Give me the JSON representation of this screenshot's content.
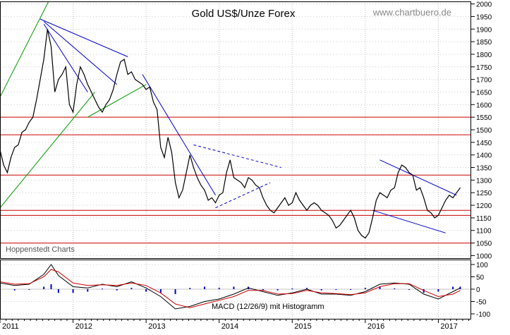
{
  "chart_data": {
    "type": "line",
    "title": "Gold US$/Unze Forex",
    "watermark": "www.chartbuero.de",
    "source_label": "Hoppenstedt Charts",
    "price_axis": {
      "ylim": [
        990,
        2010
      ],
      "ticks": [
        1000,
        1050,
        1100,
        1150,
        1200,
        1250,
        1300,
        1350,
        1400,
        1450,
        1500,
        1550,
        1600,
        1650,
        1700,
        1750,
        1800,
        1850,
        1900,
        1950,
        2000
      ]
    },
    "macd_axis": {
      "ylim": [
        -120,
        120
      ],
      "ticks": [
        -100,
        -50,
        0,
        50,
        100
      ],
      "label": "MACD (12/26/9) mit Histogramm"
    },
    "x_axis": {
      "xlim": [
        2011.0,
        2017.45
      ],
      "labels": [
        "2011",
        "2012",
        "2013",
        "2014",
        "2015",
        "2016",
        "2017"
      ]
    },
    "series": [
      {
        "name": "Gold",
        "x": [
          2011.0,
          2011.05,
          2011.1,
          2011.15,
          2011.2,
          2011.25,
          2011.3,
          2011.35,
          2011.4,
          2011.45,
          2011.5,
          2011.55,
          2011.6,
          2011.65,
          2011.7,
          2011.75,
          2011.8,
          2011.85,
          2011.9,
          2011.95,
          2012.0,
          2012.05,
          2012.1,
          2012.15,
          2012.2,
          2012.25,
          2012.3,
          2012.35,
          2012.4,
          2012.45,
          2012.5,
          2012.55,
          2012.6,
          2012.65,
          2012.7,
          2012.75,
          2012.8,
          2012.85,
          2012.9,
          2012.95,
          2013.0,
          2013.05,
          2013.1,
          2013.15,
          2013.2,
          2013.25,
          2013.3,
          2013.35,
          2013.4,
          2013.45,
          2013.5,
          2013.55,
          2013.6,
          2013.65,
          2013.7,
          2013.75,
          2013.8,
          2013.85,
          2013.9,
          2013.95,
          2014.0,
          2014.05,
          2014.1,
          2014.15,
          2014.2,
          2014.25,
          2014.3,
          2014.35,
          2014.4,
          2014.45,
          2014.5,
          2014.55,
          2014.6,
          2014.65,
          2014.7,
          2014.75,
          2014.8,
          2014.85,
          2014.9,
          2014.95,
          2015.0,
          2015.05,
          2015.1,
          2015.15,
          2015.2,
          2015.25,
          2015.3,
          2015.35,
          2015.4,
          2015.45,
          2015.5,
          2015.55,
          2015.6,
          2015.65,
          2015.7,
          2015.75,
          2015.8,
          2015.85,
          2015.9,
          2015.95,
          2016.0,
          2016.05,
          2016.1,
          2016.15,
          2016.2,
          2016.25,
          2016.3,
          2016.35,
          2016.4,
          2016.45,
          2016.5,
          2016.55,
          2016.6,
          2016.65,
          2016.7,
          2016.75,
          2016.8,
          2016.85,
          2016.9,
          2016.95,
          2017.0,
          2017.05,
          2017.1,
          2017.15,
          2017.2,
          2017.25,
          2017.3
        ],
        "values": [
          1420,
          1360,
          1330,
          1390,
          1430,
          1440,
          1490,
          1500,
          1530,
          1550,
          1620,
          1700,
          1780,
          1900,
          1830,
          1650,
          1700,
          1720,
          1750,
          1600,
          1570,
          1680,
          1750,
          1720,
          1680,
          1650,
          1620,
          1590,
          1570,
          1600,
          1620,
          1660,
          1720,
          1770,
          1780,
          1720,
          1730,
          1700,
          1690,
          1680,
          1660,
          1670,
          1610,
          1580,
          1430,
          1390,
          1470,
          1410,
          1290,
          1230,
          1260,
          1330,
          1400,
          1350,
          1310,
          1280,
          1260,
          1220,
          1230,
          1210,
          1240,
          1250,
          1330,
          1380,
          1310,
          1300,
          1290,
          1270,
          1310,
          1300,
          1280,
          1270,
          1230,
          1200,
          1180,
          1170,
          1190,
          1210,
          1230,
          1200,
          1210,
          1250,
          1220,
          1200,
          1180,
          1200,
          1210,
          1200,
          1180,
          1170,
          1160,
          1140,
          1110,
          1120,
          1140,
          1160,
          1180,
          1150,
          1100,
          1080,
          1070,
          1090,
          1150,
          1220,
          1250,
          1240,
          1230,
          1260,
          1270,
          1330,
          1360,
          1350,
          1330,
          1320,
          1260,
          1270,
          1230,
          1180,
          1170,
          1150,
          1160,
          1190,
          1220,
          1240,
          1230,
          1250,
          1270
        ]
      },
      {
        "name": "MACD",
        "x": [
          2011.0,
          2011.2,
          2011.4,
          2011.6,
          2011.7,
          2011.8,
          2012.0,
          2012.2,
          2012.4,
          2012.6,
          2012.8,
          2013.0,
          2013.2,
          2013.4,
          2013.6,
          2013.8,
          2014.0,
          2014.2,
          2014.4,
          2014.6,
          2014.8,
          2015.0,
          2015.2,
          2015.4,
          2015.6,
          2015.8,
          2016.0,
          2016.2,
          2016.4,
          2016.6,
          2016.8,
          2017.0,
          2017.2,
          2017.3
        ],
        "values": [
          25,
          15,
          20,
          60,
          100,
          55,
          10,
          5,
          20,
          10,
          30,
          5,
          -30,
          -80,
          -70,
          -50,
          -40,
          -20,
          5,
          -10,
          -25,
          -15,
          0,
          -20,
          -20,
          -25,
          -10,
          20,
          25,
          20,
          -20,
          -40,
          -10,
          5
        ]
      },
      {
        "name": "Signal",
        "x": [
          2011.0,
          2011.2,
          2011.4,
          2011.6,
          2011.7,
          2011.8,
          2012.0,
          2012.2,
          2012.4,
          2012.6,
          2012.8,
          2013.0,
          2013.2,
          2013.4,
          2013.6,
          2013.8,
          2014.0,
          2014.2,
          2014.4,
          2014.6,
          2014.8,
          2015.0,
          2015.2,
          2015.4,
          2015.6,
          2015.8,
          2016.0,
          2016.2,
          2016.4,
          2016.6,
          2016.8,
          2017.0,
          2017.2,
          2017.3
        ],
        "values": [
          30,
          20,
          22,
          50,
          80,
          70,
          25,
          15,
          18,
          15,
          25,
          15,
          -15,
          -60,
          -75,
          -60,
          -45,
          -30,
          -5,
          -5,
          -20,
          -18,
          -5,
          -15,
          -18,
          -22,
          -15,
          10,
          22,
          22,
          -5,
          -30,
          -20,
          -5
        ]
      }
    ],
    "horizontal_lines": [
      1550,
      1480,
      1320,
      1180,
      1160,
      1050
    ],
    "trendlines": [
      {
        "style": "blue",
        "points": [
          [
            2011.55,
            1940
          ],
          [
            2012.75,
            1790
          ]
        ]
      },
      {
        "style": "blue",
        "points": [
          [
            2011.6,
            1930
          ],
          [
            2012.6,
            1680
          ]
        ]
      },
      {
        "style": "blue",
        "points": [
          [
            2011.6,
            1920
          ],
          [
            2012.2,
            1650
          ]
        ]
      },
      {
        "style": "blue",
        "points": [
          [
            2012.95,
            1720
          ],
          [
            2013.95,
            1240
          ]
        ]
      },
      {
        "style": "blue-dashed",
        "points": [
          [
            2013.65,
            1440
          ],
          [
            2014.85,
            1350
          ]
        ]
      },
      {
        "style": "blue-dashed",
        "points": [
          [
            2013.95,
            1190
          ],
          [
            2014.7,
            1290
          ]
        ]
      },
      {
        "style": "blue",
        "points": [
          [
            2016.1,
            1180
          ],
          [
            2017.1,
            1090
          ]
        ]
      },
      {
        "style": "blue",
        "points": [
          [
            2016.2,
            1380
          ],
          [
            2017.25,
            1240
          ]
        ]
      },
      {
        "style": "green",
        "points": [
          [
            2011.0,
            1630
          ],
          [
            2011.7,
            2030
          ]
        ]
      },
      {
        "style": "green",
        "points": [
          [
            2011.0,
            1190
          ],
          [
            2012.3,
            1650
          ]
        ]
      },
      {
        "style": "green",
        "points": [
          [
            2012.2,
            1550
          ],
          [
            2013.0,
            1680
          ]
        ]
      }
    ],
    "grid": true,
    "colors": {
      "price": "#000000",
      "support_lines": "#cc0000",
      "trend_blue": "#0000cc",
      "trend_green": "#009900",
      "macd_line": "#000000",
      "signal_line": "#cc0000",
      "histogram": "#0000cc"
    }
  }
}
